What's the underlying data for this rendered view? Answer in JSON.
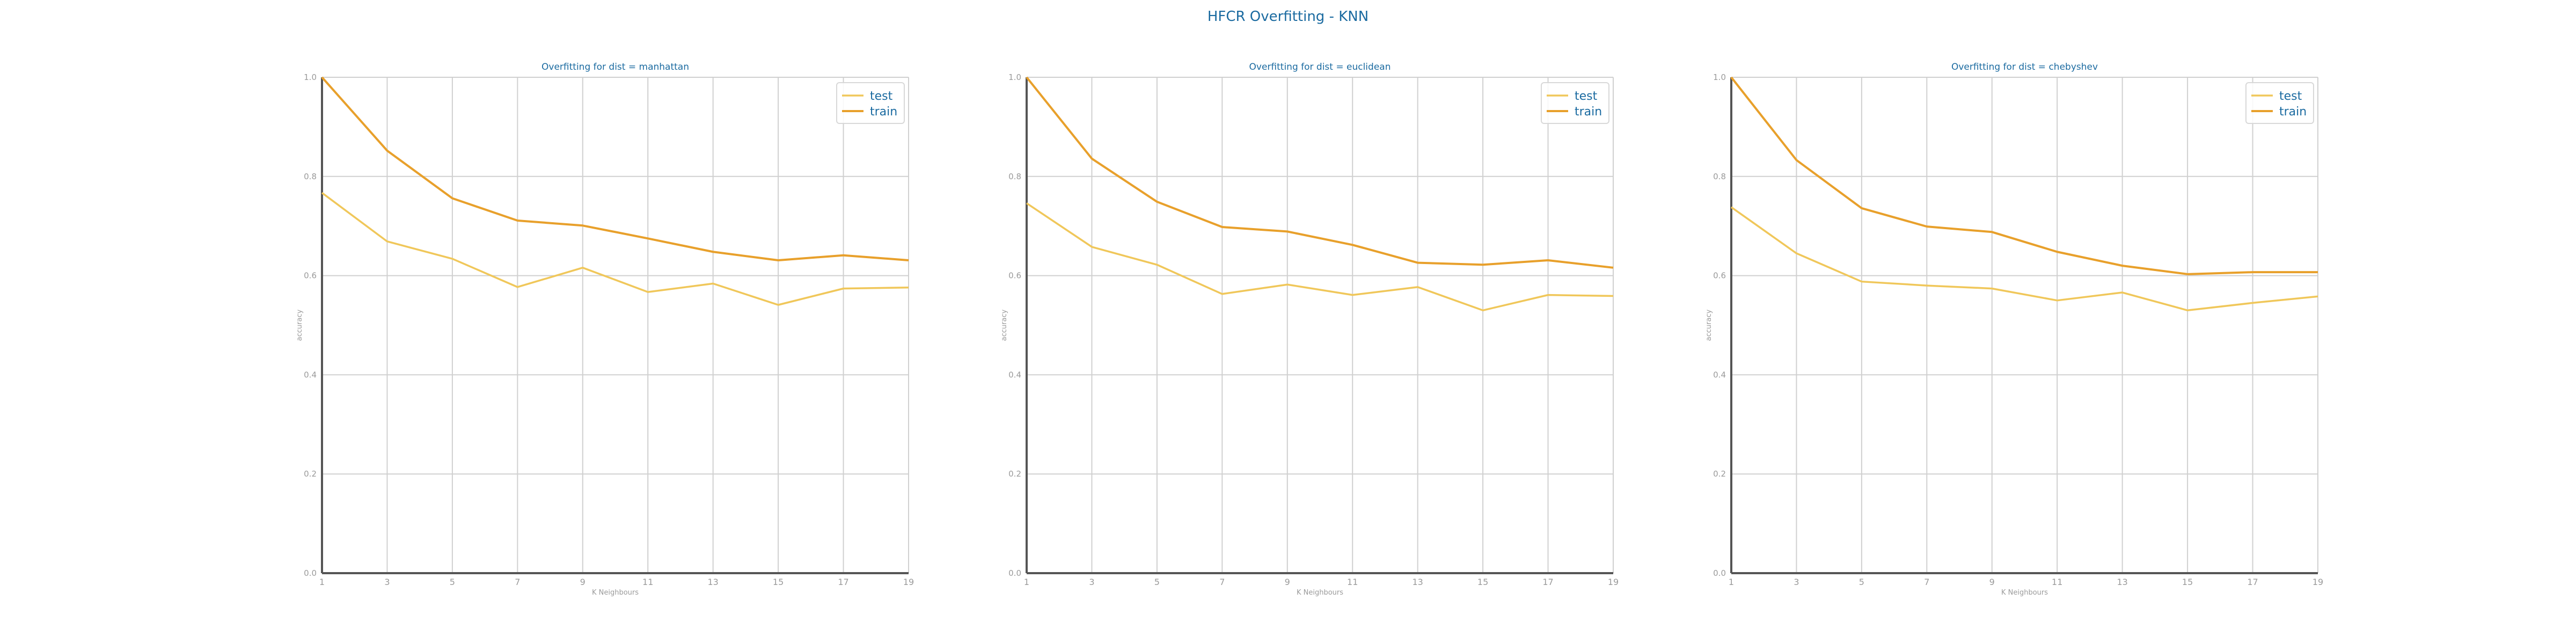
{
  "figure": {
    "suptitle": "HFCR Overfitting - KNN"
  },
  "colors": {
    "test": "#f0c75a",
    "train": "#e8a02b",
    "title_text": "#1a6aa0",
    "tick_text": "#9a9a9a",
    "grid": "#d0d0d0",
    "axis": "#555555"
  },
  "chart_data": [
    {
      "type": "line",
      "title": "Overfitting for dist = manhattan",
      "xlabel": "K Neighbours",
      "ylabel": "accuracy",
      "x": [
        1,
        3,
        5,
        7,
        9,
        11,
        13,
        15,
        17,
        19
      ],
      "xticks": [
        "1",
        "3",
        "5",
        "7",
        "9",
        "11",
        "13",
        "15",
        "17",
        "19"
      ],
      "yticks": [
        "0.0",
        "0.2",
        "0.4",
        "0.6",
        "0.8",
        "1.0"
      ],
      "xlim": [
        1,
        19
      ],
      "ylim": [
        0,
        1
      ],
      "grid": true,
      "legend_position": "top-right",
      "series": [
        {
          "name": "test",
          "color": "#f0c75a",
          "values": [
            0.767,
            0.669,
            0.634,
            0.577,
            0.616,
            0.567,
            0.584,
            0.541,
            0.574,
            0.576
          ]
        },
        {
          "name": "train",
          "color": "#e8a02b",
          "values": [
            1.0,
            0.852,
            0.756,
            0.711,
            0.701,
            0.675,
            0.648,
            0.631,
            0.641,
            0.631
          ]
        }
      ]
    },
    {
      "type": "line",
      "title": "Overfitting for dist = euclidean",
      "xlabel": "K Neighbours",
      "ylabel": "accuracy",
      "x": [
        1,
        3,
        5,
        7,
        9,
        11,
        13,
        15,
        17,
        19
      ],
      "xticks": [
        "1",
        "3",
        "5",
        "7",
        "9",
        "11",
        "13",
        "15",
        "17",
        "19"
      ],
      "yticks": [
        "0.0",
        "0.2",
        "0.4",
        "0.6",
        "0.8",
        "1.0"
      ],
      "xlim": [
        1,
        19
      ],
      "ylim": [
        0,
        1
      ],
      "grid": true,
      "legend_position": "top-right",
      "series": [
        {
          "name": "test",
          "color": "#f0c75a",
          "values": [
            0.746,
            0.658,
            0.622,
            0.563,
            0.582,
            0.561,
            0.577,
            0.53,
            0.561,
            0.559
          ]
        },
        {
          "name": "train",
          "color": "#e8a02b",
          "values": [
            1.0,
            0.836,
            0.749,
            0.698,
            0.689,
            0.662,
            0.626,
            0.622,
            0.631,
            0.616
          ]
        }
      ]
    },
    {
      "type": "line",
      "title": "Overfitting for dist = chebyshev",
      "xlabel": "K Neighbours",
      "ylabel": "accuracy",
      "x": [
        1,
        3,
        5,
        7,
        9,
        11,
        13,
        15,
        17,
        19
      ],
      "xticks": [
        "1",
        "3",
        "5",
        "7",
        "9",
        "11",
        "13",
        "15",
        "17",
        "19"
      ],
      "yticks": [
        "0.0",
        "0.2",
        "0.4",
        "0.6",
        "0.8",
        "1.0"
      ],
      "xlim": [
        1,
        19
      ],
      "ylim": [
        0,
        1
      ],
      "grid": true,
      "legend_position": "top-right",
      "series": [
        {
          "name": "test",
          "color": "#f0c75a",
          "values": [
            0.738,
            0.645,
            0.588,
            0.58,
            0.574,
            0.55,
            0.566,
            0.53,
            0.545,
            0.558
          ]
        },
        {
          "name": "train",
          "color": "#e8a02b",
          "values": [
            1.0,
            0.833,
            0.736,
            0.699,
            0.688,
            0.648,
            0.62,
            0.603,
            0.607,
            0.607
          ]
        }
      ]
    }
  ]
}
